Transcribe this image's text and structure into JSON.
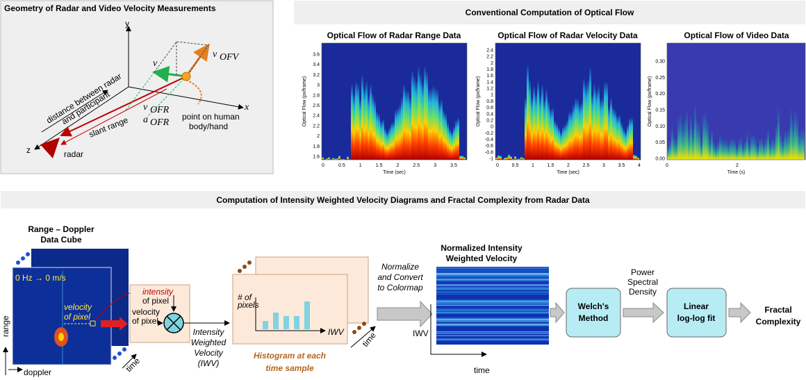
{
  "geometry": {
    "title": "Geometry of Radar and Video Velocity Measurements",
    "axes": {
      "x": "x",
      "y": "y",
      "z": "z"
    },
    "v": {
      "symbol": "v⃗"
    },
    "v_ofv": {
      "symbol": "v⃗",
      "sub": "OFV"
    },
    "v_ofr": {
      "symbol": "v⃗",
      "sub": "OFR"
    },
    "a_ofr": {
      "symbol": "a⃗",
      "sub": "OFR"
    },
    "distance": [
      "distance between radar",
      "and participant"
    ],
    "slant": "slant range",
    "point": [
      "point on human",
      "body/hand"
    ],
    "radar": "radar"
  },
  "optical_flow": {
    "title": "Conventional Computation of Optical Flow",
    "plots": [
      {
        "title": "Optical Flow of Radar Range Data",
        "ylabel": "Optical Flow (px/frame)",
        "xlabel": "Time (sec)",
        "yticks": [
          "1.6",
          "1.8",
          "2",
          "2.2",
          "2.4",
          "2.6",
          "2.8",
          "3",
          "3.2",
          "3.4",
          "3.6"
        ],
        "xticks": [
          "0",
          "0.5",
          "1",
          "1.5",
          "2",
          "2.5",
          "3",
          "3.5"
        ]
      },
      {
        "title": "Optical Flow of Radar Velocity Data",
        "ylabel": "Optical Flow (px/frame)",
        "xlabel": "Time (sec)",
        "yticks": [
          "-1",
          "-0.8",
          "-0.6",
          "-0.4",
          "-0.2",
          "0",
          "0.2",
          "0.4",
          "0.6",
          "0.8",
          "1",
          "1.2",
          "1.4",
          "1.6",
          "1.8",
          "2",
          "2.2",
          "2.4"
        ],
        "xticks": [
          "0",
          "0.5",
          "1",
          "1.5",
          "2",
          "2.5",
          "3",
          "3.5",
          "4"
        ]
      },
      {
        "title": "Optical Flow of Video Data",
        "ylabel": "Optical Flow (px/frame)",
        "xlabel": "Time (s)",
        "yticks": [
          "0.00",
          "0.05",
          "0.10",
          "0.15",
          "0.20",
          "0.25",
          "0.30"
        ],
        "xticks": [
          "0",
          "2"
        ]
      }
    ]
  },
  "pipeline": {
    "title": "Computation of Intensity Weighted Velocity Diagrams and Fractal Complexity from Radar Data",
    "cube": {
      "title": [
        "Range – Doppler",
        "Data Cube"
      ],
      "zero": "0 Hz → 0 m/s",
      "velocity": [
        "velocity",
        "of pixel"
      ],
      "range": "range",
      "doppler": "doppler",
      "time": "time"
    },
    "multiplier": {
      "intensity": [
        "intensity",
        "of pixel"
      ],
      "velocity": [
        "velocity",
        "of pixel"
      ]
    },
    "iwv": [
      "Intensity",
      "Weighted",
      "Velocity",
      "(IWV)"
    ],
    "histogram": {
      "ylabel": [
        "# of",
        "pixels"
      ],
      "xlabel": "IWV",
      "time": "time",
      "caption": [
        "Histogram at each",
        "time sample"
      ]
    },
    "normalize": [
      "Normalize",
      "and Convert",
      "to Colormap"
    ],
    "colormap": {
      "title": [
        "Normalized Intensity",
        "Weighted Velocity"
      ],
      "ylabel": "IWV",
      "xlabel": "time"
    },
    "welch": [
      "Welch's",
      "Method"
    ],
    "psd": [
      "Power",
      "Spectral",
      "Density"
    ],
    "fit": [
      "Linear",
      "log-log fit"
    ],
    "result": [
      "Fractal",
      "Complexity"
    ]
  }
}
